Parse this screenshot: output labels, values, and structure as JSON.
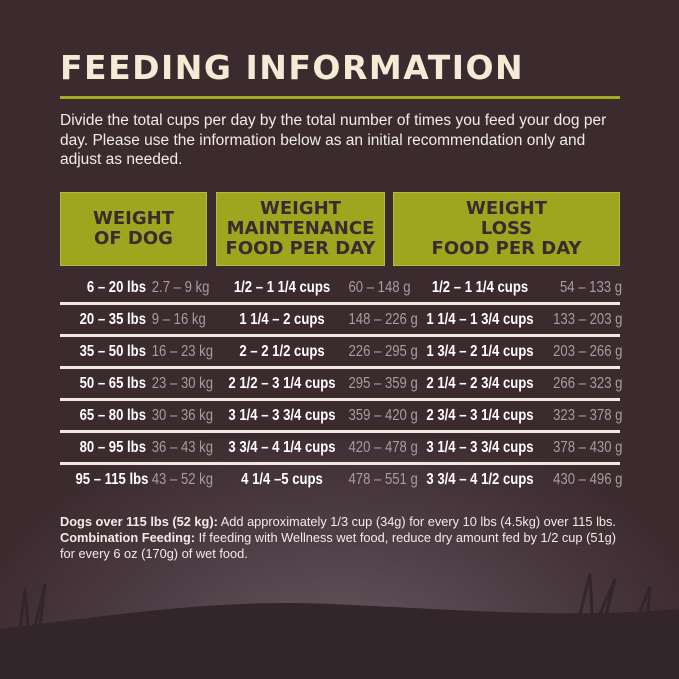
{
  "title": "FEEDING INFORMATION",
  "intro": "Divide the total cups per day by the total number of times you feed your dog per day. Please use the information below as an initial recommendation only and adjust as needed.",
  "colors": {
    "background": "#3b2b2f",
    "accent": "#9da61e",
    "title": "#f4ead6"
  },
  "table": {
    "headers": [
      [
        "WEIGHT",
        "OF DOG"
      ],
      [
        "WEIGHT",
        "MAINTENANCE",
        "FOOD PER DAY"
      ],
      [
        "WEIGHT",
        "LOSS",
        "FOOD PER DAY"
      ]
    ],
    "rows": [
      {
        "lbs": "6 – 20 lbs",
        "kg": "2.7 – 9 kg",
        "maint_cups": "1/2 – 1 1/4 cups",
        "maint_g": "60 – 148 g",
        "loss_cups": "1/2 – 1 1/4 cups",
        "loss_g": "54 – 133 g"
      },
      {
        "lbs": "20 – 35 lbs",
        "kg": "9 – 16 kg",
        "maint_cups": "1 1/4 – 2 cups",
        "maint_g": "148 – 226 g",
        "loss_cups": "1 1/4 – 1 3/4 cups",
        "loss_g": "133 – 203 g"
      },
      {
        "lbs": "35 – 50 lbs",
        "kg": "16 – 23 kg",
        "maint_cups": "2 – 2 1/2 cups",
        "maint_g": "226 – 295 g",
        "loss_cups": "1 3/4 – 2 1/4 cups",
        "loss_g": "203 – 266 g"
      },
      {
        "lbs": "50 – 65 lbs",
        "kg": "23 – 30 kg",
        "maint_cups": "2 1/2 – 3 1/4 cups",
        "maint_g": "295 – 359 g",
        "loss_cups": "2 1/4 – 2 3/4 cups",
        "loss_g": "266 – 323 g"
      },
      {
        "lbs": "65 – 80 lbs",
        "kg": "30 – 36 kg",
        "maint_cups": "3 1/4 – 3 3/4 cups",
        "maint_g": "359 – 420 g",
        "loss_cups": "2 3/4 – 3 1/4 cups",
        "loss_g": "323 – 378 g"
      },
      {
        "lbs": "80 – 95 lbs",
        "kg": "36 – 43 kg",
        "maint_cups": "3 3/4 – 4 1/4 cups",
        "maint_g": "420 – 478 g",
        "loss_cups": "3 1/4 – 3 3/4 cups",
        "loss_g": "378 – 430 g"
      },
      {
        "lbs": "95 – 115 lbs",
        "kg": "43 – 52 kg",
        "maint_cups": "4 1/4 –5 cups",
        "maint_g": "478 – 551 g",
        "loss_cups": "3 3/4 – 4 1/2 cups",
        "loss_g": "430 – 496 g"
      }
    ]
  },
  "notes": {
    "over_label": "Dogs over 115 lbs (52 kg):",
    "over_text": " Add approximately 1/3 cup (34g) for every 10 lbs (4.5kg) over 115 lbs. ",
    "combo_label": "Combination Feeding:",
    "combo_text": " If feeding with Wellness wet food, reduce dry amount fed by 1/2 cup (51g) for every 6 oz (170g) of wet food."
  }
}
